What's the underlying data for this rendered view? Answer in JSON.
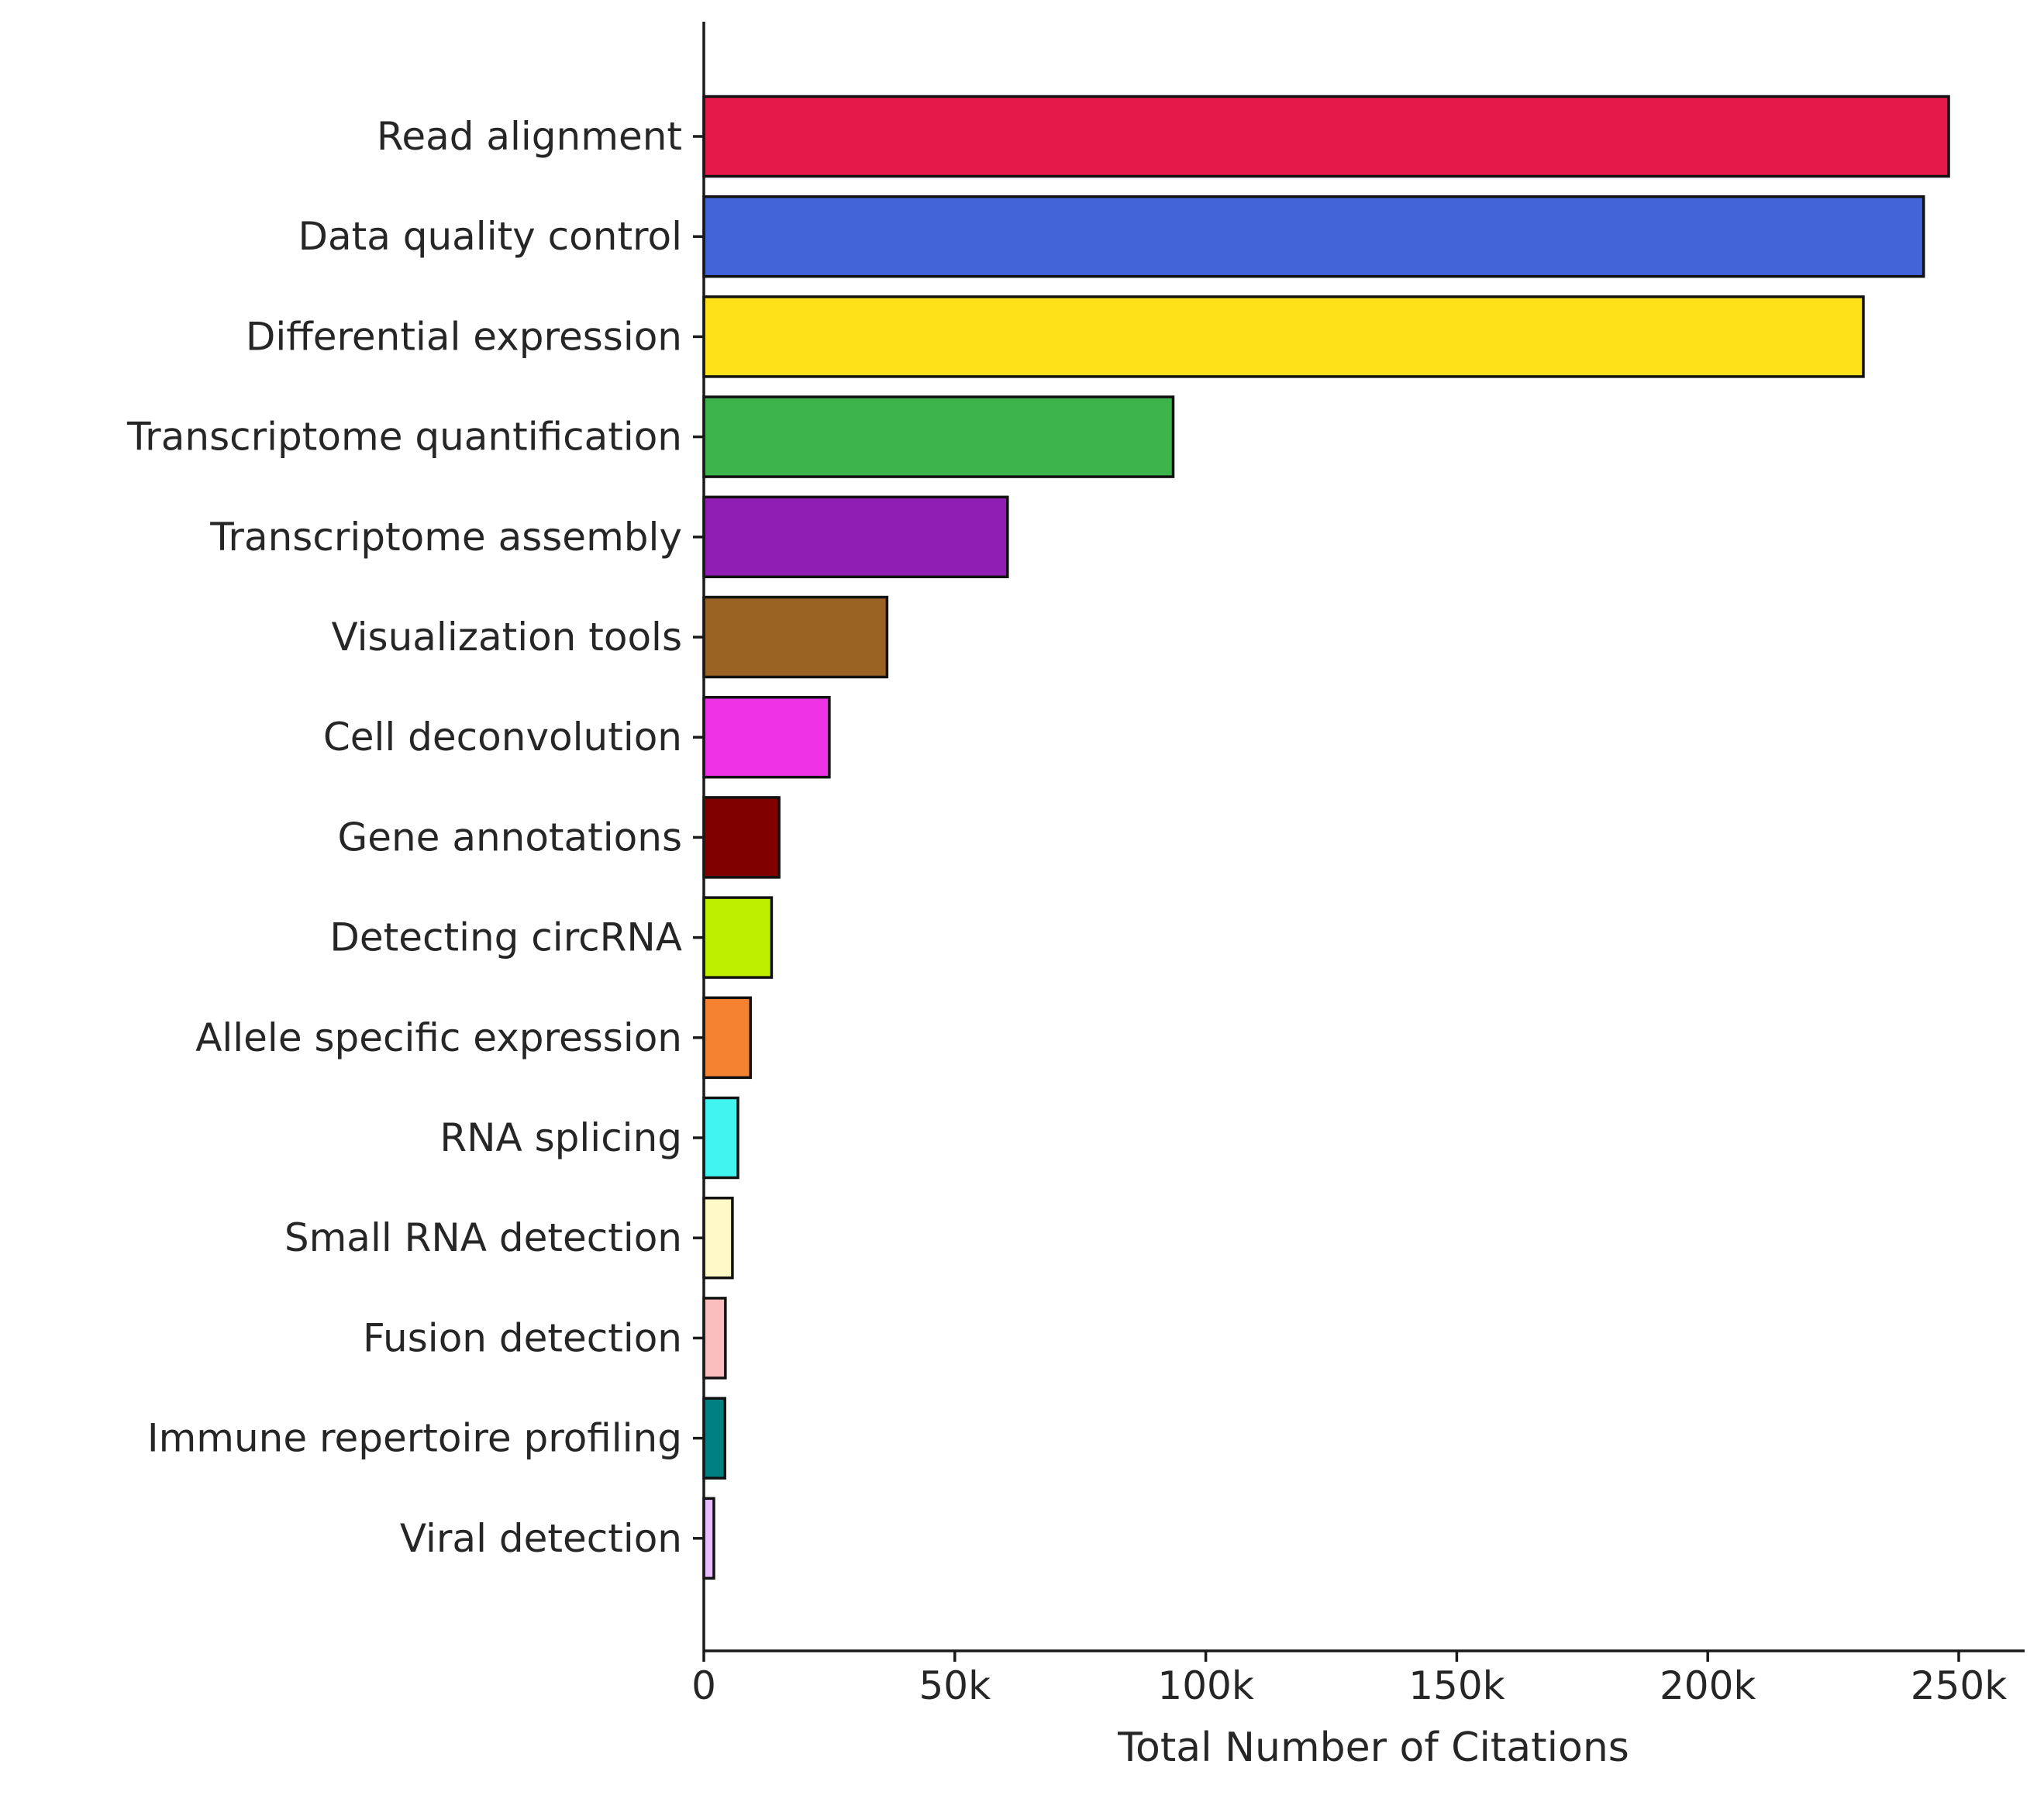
{
  "chart_data": {
    "type": "bar",
    "orientation": "horizontal",
    "categories": [
      "Read alignment",
      "Data quality control",
      "Differential expression",
      "Transcriptome quantification",
      "Transcriptome assembly",
      "Visualization tools",
      "Cell deconvolution",
      "Gene annotations",
      "Detecting circRNA",
      "Allele specific expression",
      "RNA splicing",
      "Small RNA detection",
      "Fusion detection",
      "Immune repertoire profiling",
      "Viral detection"
    ],
    "values": [
      248000,
      243000,
      231000,
      93500,
      60500,
      36500,
      25000,
      15000,
      13500,
      9300,
      6800,
      5700,
      4300,
      4200,
      2000
    ],
    "colors": [
      "#e6194b",
      "#4363d8",
      "#ffe119",
      "#3cb44b",
      "#911eb4",
      "#9a6324",
      "#f032e6",
      "#800000",
      "#bfef00",
      "#f58231",
      "#42f4ef",
      "#fffac8",
      "#fabebe",
      "#008080",
      "#e6beff"
    ],
    "xlabel": "Total Number of Citations",
    "ylabel": "",
    "title": "",
    "xlim": [
      0,
      260000
    ],
    "xticks": [
      {
        "value": 0,
        "label": "0"
      },
      {
        "value": 50000,
        "label": "50k"
      },
      {
        "value": 100000,
        "label": "100k"
      },
      {
        "value": 150000,
        "label": "150k"
      },
      {
        "value": 200000,
        "label": "200k"
      },
      {
        "value": 250000,
        "label": "250k"
      }
    ],
    "grid": false,
    "legend": "none"
  }
}
